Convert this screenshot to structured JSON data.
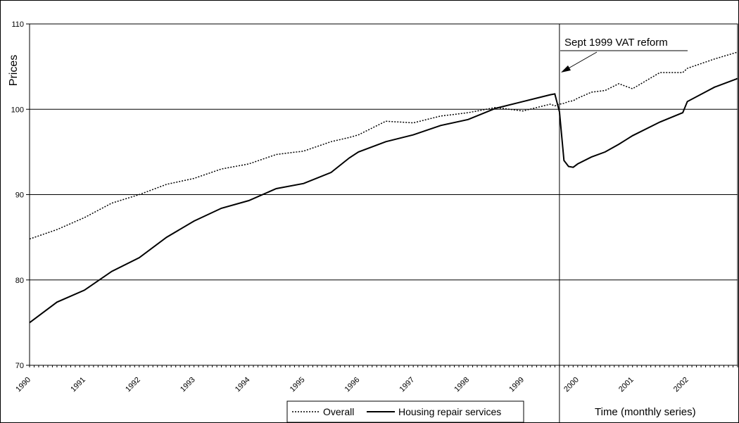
{
  "chart_data": {
    "type": "line",
    "title": "",
    "xlabel": "Time (monthly series)",
    "ylabel": "Prices",
    "ylim": [
      70,
      110
    ],
    "yticks": [
      70,
      80,
      90,
      100,
      110
    ],
    "xlim": [
      1990.0,
      2002.917
    ],
    "xticks": [
      "1990",
      "1991",
      "1992",
      "1993",
      "1994",
      "1995",
      "1996",
      "1997",
      "1998",
      "1999",
      "2000",
      "2001",
      "2002"
    ],
    "grid": "horizontal",
    "legend_position": "bottom",
    "annotation": {
      "text": "Sept 1999 VAT reform",
      "x": 1999.667,
      "arrow": true
    },
    "vline_x": 1999.667,
    "x": [
      1990.0,
      1990.5,
      1991.0,
      1991.5,
      1992.0,
      1992.5,
      1993.0,
      1993.5,
      1994.0,
      1994.5,
      1995.0,
      1995.5,
      1995.833,
      1996.0,
      1996.5,
      1997.0,
      1997.5,
      1998.0,
      1998.5,
      1999.0,
      1999.5,
      1999.583,
      1999.667,
      1999.75,
      1999.833,
      1999.917,
      2000.0,
      2000.25,
      2000.5,
      2000.75,
      2001.0,
      2001.5,
      2001.917,
      2002.0,
      2002.5,
      2002.917
    ],
    "series": [
      {
        "name": "Overall",
        "style": "dotted",
        "values": [
          84.8,
          85.9,
          87.3,
          89.0,
          90.0,
          91.2,
          91.9,
          93.0,
          93.6,
          94.7,
          95.1,
          96.2,
          96.7,
          97.0,
          98.6,
          98.4,
          99.2,
          99.6,
          100.2,
          99.8,
          100.6,
          100.4,
          100.6,
          100.7,
          100.9,
          101.0,
          101.3,
          102.0,
          102.2,
          103.0,
          102.4,
          104.3,
          104.3,
          104.8,
          105.9,
          106.7
        ]
      },
      {
        "name": "Housing repair services",
        "style": "solid",
        "values": [
          75.0,
          77.4,
          78.8,
          81.0,
          82.6,
          85.0,
          86.9,
          88.4,
          89.3,
          90.7,
          91.3,
          92.6,
          94.3,
          95.0,
          96.2,
          97.0,
          98.1,
          98.8,
          100.1,
          100.9,
          101.7,
          101.8,
          99.7,
          94.0,
          93.3,
          93.2,
          93.6,
          94.4,
          95.0,
          95.9,
          96.9,
          98.5,
          99.6,
          100.9,
          102.6,
          103.6
        ]
      }
    ]
  }
}
